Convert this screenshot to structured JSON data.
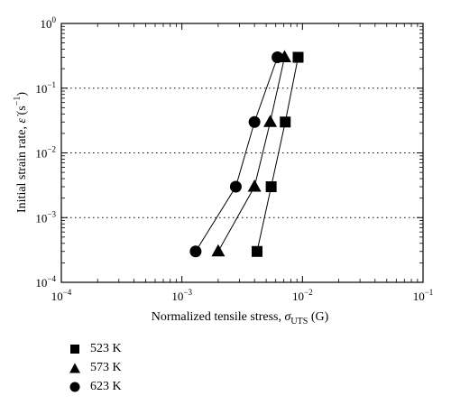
{
  "chart_data": {
    "type": "scatter",
    "title": "",
    "xscale": "log",
    "yscale": "log",
    "xlim": [
      0.0001,
      0.1
    ],
    "ylim": [
      0.0001,
      1
    ],
    "x_ticks": [
      0.0001,
      0.001,
      0.01,
      0.1
    ],
    "y_ticks": [
      0.0001,
      0.001,
      0.01,
      0.1,
      1
    ],
    "x_tick_labels": [
      {
        "base": "10",
        "exp": "−4"
      },
      {
        "base": "10",
        "exp": "−3"
      },
      {
        "base": "10",
        "exp": "−2"
      },
      {
        "base": "10",
        "exp": "−1"
      }
    ],
    "y_tick_labels": [
      {
        "base": "10",
        "exp": "−4"
      },
      {
        "base": "10",
        "exp": "−3"
      },
      {
        "base": "10",
        "exp": "−2"
      },
      {
        "base": "10",
        "exp": "−1"
      },
      {
        "base": "10",
        "exp": "0"
      }
    ],
    "xlabel": {
      "main": "Normalized tensile stress, ",
      "symbol": "σ",
      "sub": "UTS",
      "unit": " (G)"
    },
    "ylabel": {
      "main": "Initial strain rate, ",
      "symbol": "ε̇",
      "unit": " (s",
      "unit_exp": "−1",
      "unit_close": ")"
    },
    "grid": {
      "horizontal_dotted_at": [
        0.001,
        0.01,
        0.1
      ]
    },
    "legend_position": "below-left",
    "series": [
      {
        "name": "523 K",
        "marker": "square",
        "points": [
          [
            0.0042,
            0.0003
          ],
          [
            0.0055,
            0.003
          ],
          [
            0.0072,
            0.03
          ],
          [
            0.0092,
            0.3
          ]
        ]
      },
      {
        "name": "573 K",
        "marker": "triangle",
        "points": [
          [
            0.002,
            0.0003
          ],
          [
            0.004,
            0.003
          ],
          [
            0.0054,
            0.03
          ],
          [
            0.0071,
            0.3
          ]
        ]
      },
      {
        "name": "623 K",
        "marker": "circle",
        "points": [
          [
            0.0013,
            0.0003
          ],
          [
            0.0028,
            0.003
          ],
          [
            0.004,
            0.03
          ],
          [
            0.0062,
            0.3
          ]
        ]
      }
    ],
    "colors": {
      "marker": "#000000",
      "line": "#000000",
      "grid": "#000000"
    }
  }
}
